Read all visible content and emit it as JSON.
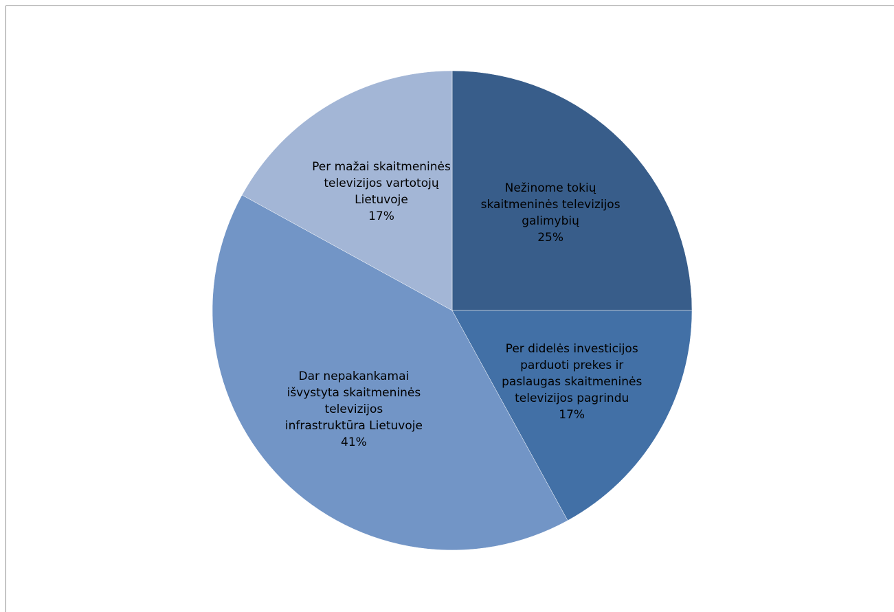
{
  "chart_data": {
    "type": "pie",
    "title": "",
    "legend": "none",
    "slices": [
      {
        "label_lines": [
          "Nežinome tokių",
          "skaitmeninės televizijos",
          "galimybių"
        ],
        "value": 25,
        "percent_label": "25%",
        "color": "#385d8a"
      },
      {
        "label_lines": [
          "Per didelės investicijos",
          "parduoti prekes ir",
          "paslaugas skaitmeninės",
          "televizijos pagrindu"
        ],
        "value": 17,
        "percent_label": "17%",
        "color": "#4270a6"
      },
      {
        "label_lines": [
          "Dar nepakankamai",
          "išvystyta skaitmeninės",
          "televizijos",
          "infrastruktūra Lietuvoje"
        ],
        "value": 41,
        "percent_label": "41%",
        "color": "#7295c6"
      },
      {
        "label_lines": [
          "Per mažai skaitmeninės",
          "televizijos vartotojų",
          "Lietuvoje"
        ],
        "value": 17,
        "percent_label": "17%",
        "color": "#a3b6d6"
      }
    ]
  }
}
